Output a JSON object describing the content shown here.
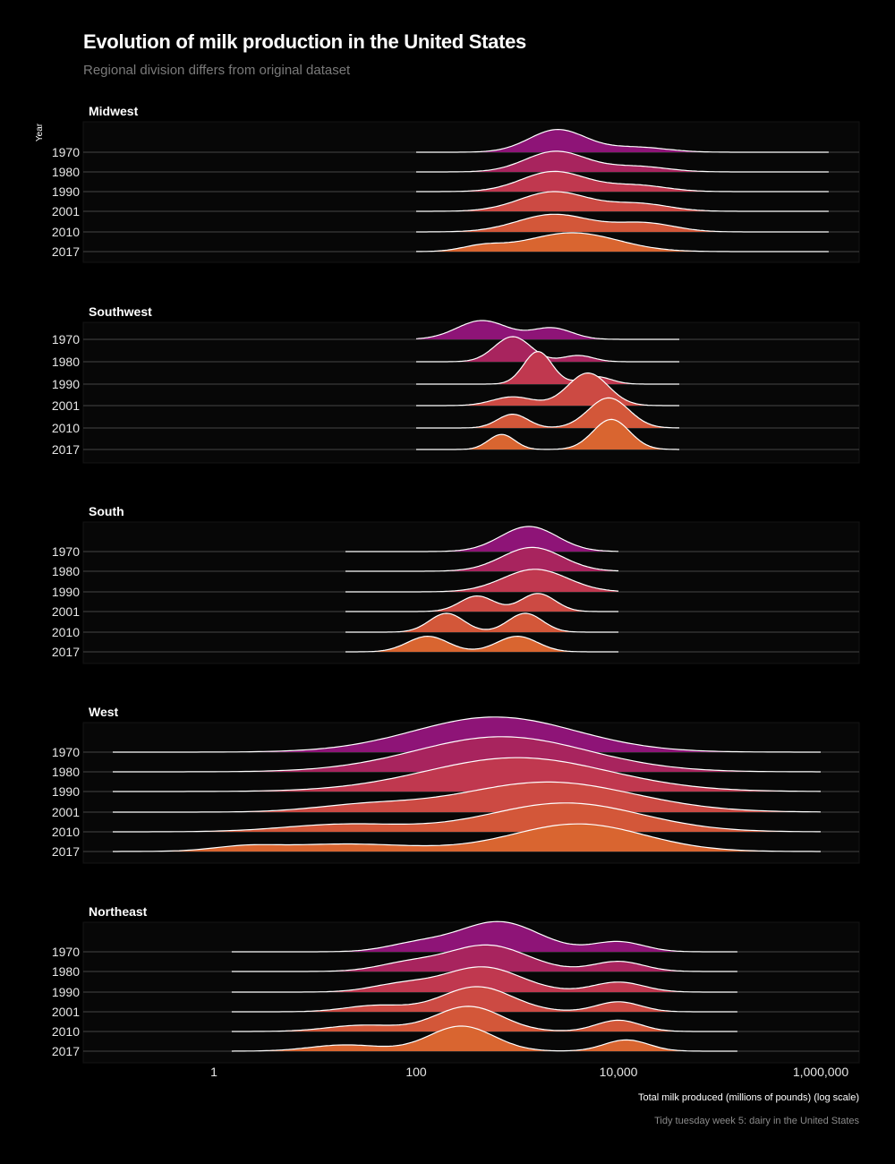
{
  "title": "Evolution of milk production in the United States",
  "subtitle": "Regional division differs from original dataset",
  "caption": "Tidy tuesday week 5: dairy in the United States",
  "chart_data": {
    "type": "ridgeline",
    "y_axis_label": "Year",
    "x_axis_label": "Total milk produced (millions of pounds) (log scale)",
    "x_scale": "log10",
    "x_ticks": [
      1,
      100,
      10000,
      1000000
    ],
    "x_tick_labels": [
      "1",
      "100",
      "10,000",
      "1,000,000"
    ],
    "years": [
      "1970",
      "1980",
      "1990",
      "2001",
      "2010",
      "2017"
    ],
    "colors": [
      "#8e1477",
      "#a8245e",
      "#c0384f",
      "#cc4a43",
      "#d35739",
      "#d96530"
    ],
    "panels": [
      {
        "region": "Midwest",
        "x_range": [
          100,
          1200000
        ],
        "ridges": [
          {
            "year": "1970",
            "peaks": [
              {
                "x": 2500,
                "h": 0.9,
                "sd": 0.28
              },
              {
                "x": 15000,
                "h": 0.2,
                "sd": 0.3
              }
            ]
          },
          {
            "year": "1980",
            "peaks": [
              {
                "x": 2400,
                "h": 0.82,
                "sd": 0.3
              },
              {
                "x": 15000,
                "h": 0.22,
                "sd": 0.3
              }
            ]
          },
          {
            "year": "1990",
            "peaks": [
              {
                "x": 2300,
                "h": 0.8,
                "sd": 0.32
              },
              {
                "x": 15000,
                "h": 0.25,
                "sd": 0.3
              }
            ]
          },
          {
            "year": "2001",
            "peaks": [
              {
                "x": 2300,
                "h": 0.78,
                "sd": 0.34
              },
              {
                "x": 16000,
                "h": 0.3,
                "sd": 0.3
              }
            ]
          },
          {
            "year": "2010",
            "peaks": [
              {
                "x": 2300,
                "h": 0.7,
                "sd": 0.36
              },
              {
                "x": 18000,
                "h": 0.35,
                "sd": 0.3
              }
            ]
          },
          {
            "year": "2017",
            "peaks": [
              {
                "x": 3500,
                "h": 0.75,
                "sd": 0.45
              },
              {
                "x": 450,
                "h": 0.2,
                "sd": 0.2
              }
            ]
          }
        ]
      },
      {
        "region": "Southwest",
        "x_range": [
          100,
          40000
        ],
        "ridges": [
          {
            "year": "1970",
            "peaks": [
              {
                "x": 450,
                "h": 0.75,
                "sd": 0.25
              },
              {
                "x": 2200,
                "h": 0.45,
                "sd": 0.2
              }
            ]
          },
          {
            "year": "1980",
            "peaks": [
              {
                "x": 900,
                "h": 1.0,
                "sd": 0.18
              },
              {
                "x": 4000,
                "h": 0.25,
                "sd": 0.15
              }
            ]
          },
          {
            "year": "1990",
            "peaks": [
              {
                "x": 1600,
                "h": 1.3,
                "sd": 0.14
              },
              {
                "x": 6000,
                "h": 0.3,
                "sd": 0.15
              }
            ]
          },
          {
            "year": "2001",
            "peaks": [
              {
                "x": 5000,
                "h": 1.3,
                "sd": 0.2
              },
              {
                "x": 900,
                "h": 0.35,
                "sd": 0.2
              }
            ]
          },
          {
            "year": "2010",
            "peaks": [
              {
                "x": 8000,
                "h": 1.2,
                "sd": 0.2
              },
              {
                "x": 900,
                "h": 0.55,
                "sd": 0.15
              }
            ]
          },
          {
            "year": "2017",
            "peaks": [
              {
                "x": 8500,
                "h": 1.2,
                "sd": 0.18
              },
              {
                "x": 700,
                "h": 0.6,
                "sd": 0.13
              }
            ]
          }
        ]
      },
      {
        "region": "South",
        "x_range": [
          20,
          10000
        ],
        "ridges": [
          {
            "year": "1970",
            "peaks": [
              {
                "x": 1300,
                "h": 1.0,
                "sd": 0.28
              }
            ]
          },
          {
            "year": "1980",
            "peaks": [
              {
                "x": 1400,
                "h": 0.95,
                "sd": 0.3
              }
            ]
          },
          {
            "year": "1990",
            "peaks": [
              {
                "x": 1500,
                "h": 0.9,
                "sd": 0.32
              }
            ]
          },
          {
            "year": "2001",
            "peaks": [
              {
                "x": 1600,
                "h": 0.72,
                "sd": 0.17
              },
              {
                "x": 400,
                "h": 0.62,
                "sd": 0.17
              }
            ]
          },
          {
            "year": "2010",
            "peaks": [
              {
                "x": 1200,
                "h": 0.75,
                "sd": 0.17
              },
              {
                "x": 200,
                "h": 0.75,
                "sd": 0.17
              }
            ]
          },
          {
            "year": "2017",
            "peaks": [
              {
                "x": 1000,
                "h": 0.62,
                "sd": 0.2
              },
              {
                "x": 130,
                "h": 0.62,
                "sd": 0.2
              }
            ]
          }
        ]
      },
      {
        "region": "West",
        "x_range": [
          0.1,
          1000000
        ],
        "ridges": [
          {
            "year": "1970",
            "peaks": [
              {
                "x": 600,
                "h": 1.4,
                "sd": 0.8
              }
            ]
          },
          {
            "year": "1980",
            "peaks": [
              {
                "x": 700,
                "h": 1.4,
                "sd": 0.85
              }
            ]
          },
          {
            "year": "1990",
            "peaks": [
              {
                "x": 1000,
                "h": 1.35,
                "sd": 0.9
              }
            ]
          },
          {
            "year": "2001",
            "peaks": [
              {
                "x": 2000,
                "h": 1.2,
                "sd": 0.85
              },
              {
                "x": 30,
                "h": 0.25,
                "sd": 0.5
              }
            ]
          },
          {
            "year": "2010",
            "peaks": [
              {
                "x": 3000,
                "h": 1.15,
                "sd": 0.75
              },
              {
                "x": 20,
                "h": 0.3,
                "sd": 0.6
              }
            ]
          },
          {
            "year": "2017",
            "peaks": [
              {
                "x": 4000,
                "h": 1.1,
                "sd": 0.65
              },
              {
                "x": 20,
                "h": 0.3,
                "sd": 0.7
              },
              {
                "x": 2,
                "h": 0.15,
                "sd": 0.3
              }
            ]
          }
        ]
      },
      {
        "region": "Northeast",
        "x_range": [
          1.5,
          150000
        ],
        "ridges": [
          {
            "year": "1970",
            "peaks": [
              {
                "x": 650,
                "h": 1.2,
                "sd": 0.4
              },
              {
                "x": 10000,
                "h": 0.4,
                "sd": 0.25
              },
              {
                "x": 100,
                "h": 0.3,
                "sd": 0.3
              }
            ]
          },
          {
            "year": "1980",
            "peaks": [
              {
                "x": 500,
                "h": 1.05,
                "sd": 0.4
              },
              {
                "x": 10000,
                "h": 0.4,
                "sd": 0.25
              },
              {
                "x": 80,
                "h": 0.3,
                "sd": 0.3
              }
            ]
          },
          {
            "year": "1990",
            "peaks": [
              {
                "x": 450,
                "h": 1.0,
                "sd": 0.38
              },
              {
                "x": 10000,
                "h": 0.4,
                "sd": 0.25
              },
              {
                "x": 70,
                "h": 0.3,
                "sd": 0.3
              }
            ]
          },
          {
            "year": "2001",
            "peaks": [
              {
                "x": 400,
                "h": 1.0,
                "sd": 0.35
              },
              {
                "x": 10000,
                "h": 0.4,
                "sd": 0.22
              },
              {
                "x": 40,
                "h": 0.25,
                "sd": 0.3
              }
            ]
          },
          {
            "year": "2010",
            "peaks": [
              {
                "x": 330,
                "h": 1.0,
                "sd": 0.33
              },
              {
                "x": 10000,
                "h": 0.45,
                "sd": 0.22
              },
              {
                "x": 30,
                "h": 0.25,
                "sd": 0.35
              }
            ]
          },
          {
            "year": "2017",
            "peaks": [
              {
                "x": 280,
                "h": 1.0,
                "sd": 0.32
              },
              {
                "x": 12000,
                "h": 0.45,
                "sd": 0.22
              },
              {
                "x": 20,
                "h": 0.25,
                "sd": 0.35
              }
            ]
          }
        ]
      }
    ]
  }
}
